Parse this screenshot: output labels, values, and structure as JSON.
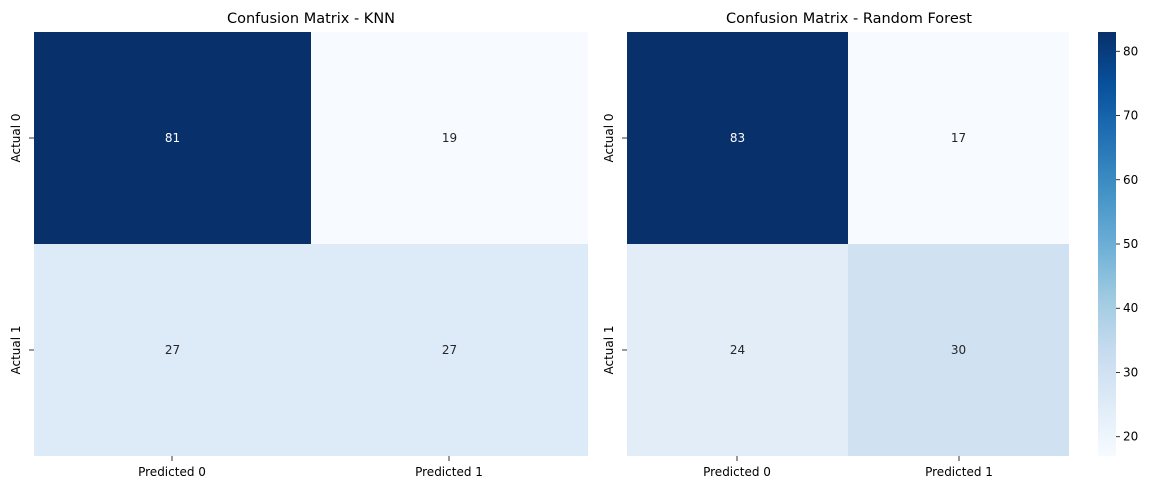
{
  "chart_data": [
    {
      "type": "heatmap",
      "title": "Confusion Matrix - KNN",
      "xlabels": [
        "Predicted 0",
        "Predicted 1"
      ],
      "ylabels": [
        "Actual 0",
        "Actual 1"
      ],
      "values": [
        [
          81,
          19
        ],
        [
          27,
          27
        ]
      ],
      "colormap": "Blues",
      "colorbar": false
    },
    {
      "type": "heatmap",
      "title": "Confusion Matrix - Random Forest",
      "xlabels": [
        "Predicted 0",
        "Predicted 1"
      ],
      "ylabels": [
        "Actual 0",
        "Actual 1"
      ],
      "values": [
        [
          83,
          17
        ],
        [
          24,
          30
        ]
      ],
      "colormap": "Blues",
      "colorbar": true,
      "colorbar_ticks": [
        20,
        30,
        40,
        50,
        60,
        70,
        80
      ],
      "colorbar_range": [
        17,
        83
      ]
    }
  ]
}
